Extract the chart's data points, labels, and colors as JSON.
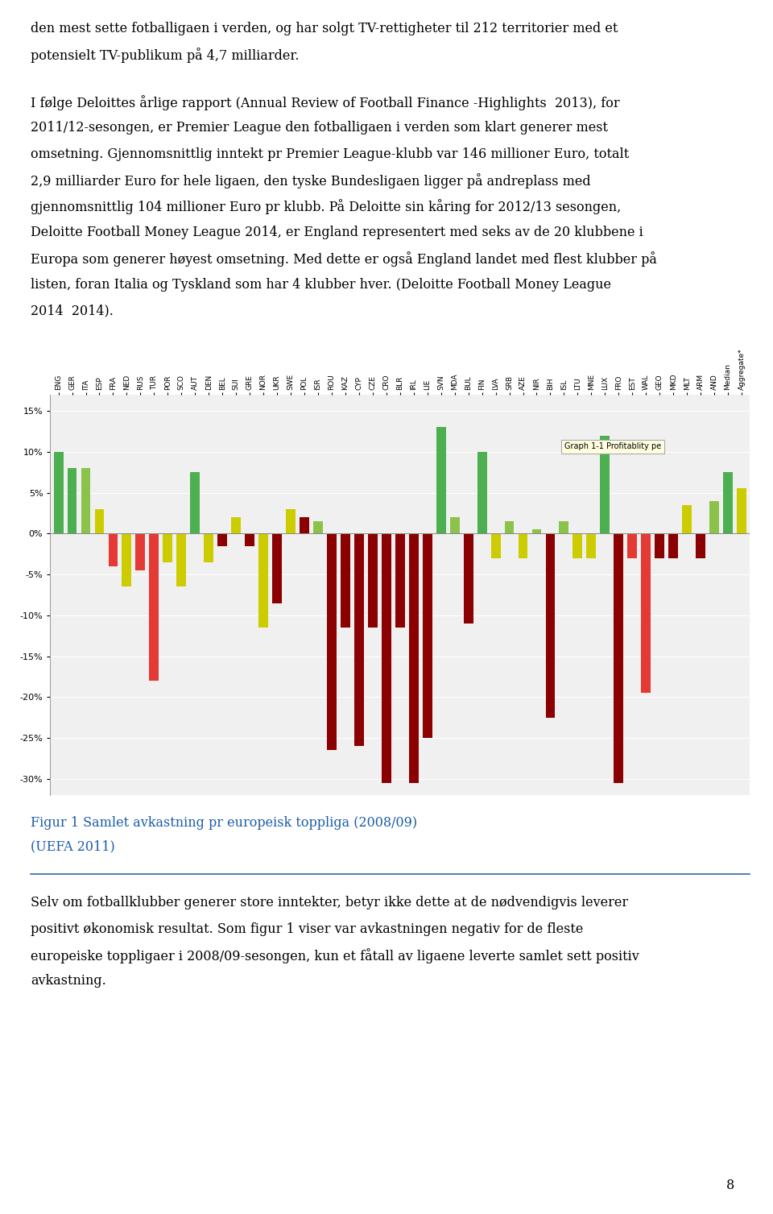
{
  "categories": [
    "ENG",
    "GER",
    "ITA",
    "ESP",
    "FRA",
    "NED",
    "RUS",
    "TUR",
    "POR",
    "SCO",
    "AUT",
    "DEN",
    "BEL",
    "SUI",
    "GRE",
    "NOR",
    "UKR",
    "SWE",
    "POL",
    "ISR",
    "ROU",
    "KAZ",
    "CYP",
    "CZE",
    "CRO",
    "BLR",
    "IRL",
    "LIE",
    "SVN",
    "MDA",
    "BUL",
    "FIN",
    "LVA",
    "SRB",
    "AZE",
    "NIR",
    "BIH",
    "ISL",
    "LTU",
    "MNE",
    "LUX",
    "FRO",
    "EST",
    "WAL",
    "GEO",
    "MKD",
    "MLT",
    "ARM",
    "AND",
    "Median",
    "Aggregate*"
  ],
  "values": [
    10.0,
    8.0,
    8.0,
    3.0,
    -4.0,
    -6.5,
    -4.5,
    -18.0,
    -3.5,
    -6.5,
    7.5,
    -3.5,
    -1.5,
    2.0,
    -1.5,
    -11.5,
    -8.5,
    3.0,
    2.0,
    1.5,
    -26.5,
    -11.5,
    -26.0,
    -11.5,
    -30.5,
    -11.5,
    -30.5,
    -25.0,
    13.0,
    2.0,
    -11.0,
    10.0,
    -3.0,
    1.5,
    -3.0,
    0.5,
    -22.5,
    1.5,
    -3.0,
    -3.0,
    12.0,
    -30.5,
    -3.0,
    -19.5,
    -3.0,
    -3.0,
    3.5,
    -3.0,
    4.0,
    7.5,
    5.5
  ],
  "colors": [
    "#4caf50",
    "#4caf50",
    "#8bc34a",
    "#cccc00",
    "#e53935",
    "#cccc00",
    "#e53935",
    "#e53935",
    "#cccc00",
    "#cccc00",
    "#4caf50",
    "#cccc00",
    "#8b0000",
    "#cccc00",
    "#8b0000",
    "#cccc00",
    "#8b0000",
    "#cccc00",
    "#8b0000",
    "#8bc34a",
    "#8b0000",
    "#8b0000",
    "#8b0000",
    "#8b0000",
    "#8b0000",
    "#8b0000",
    "#8b0000",
    "#8b0000",
    "#4caf50",
    "#8bc34a",
    "#8b0000",
    "#4caf50",
    "#cccc00",
    "#8bc34a",
    "#cccc00",
    "#8bc34a",
    "#8b0000",
    "#8bc34a",
    "#cccc00",
    "#cccc00",
    "#4caf50",
    "#8b0000",
    "#e53935",
    "#e53935",
    "#8b0000",
    "#8b0000",
    "#cccc00",
    "#8b0000",
    "#8bc34a",
    "#4caf50",
    "#cccc00"
  ],
  "ylim": [
    -32,
    17
  ],
  "yticks": [
    15,
    10,
    5,
    0,
    -5,
    -10,
    -15,
    -20,
    -25,
    -30
  ],
  "note_text": "Graph 1-1 Profitablity pe",
  "caption_line1": "Figur 1 Samlet avkastning pr europeisk toppliga (2008/09)",
  "caption_line2": "(UEFA 2011)",
  "chart_bg": "#f0f0f0",
  "page_texts_top": [
    "den mest sette fotballigaen i verden, og har solgt TV-rettigheter til 212 territorier med et",
    "potensielt TV-publikum på 4,7 milliarder.",
    "",
    "I følge Deloittes årlige rapport (Annual Review of Football Finance -Highlights  2013), for",
    "2011/12-sesongen, er Premier League den fotballigaen i verden som klart generer mest",
    "omsetning. Gjennomsnittlig inntekt pr Premier League-klubb var 146 millioner Euro, totalt",
    "2,9 milliarder Euro for hele ligaen, den tyske Bundesligaen ligger på andreplass med",
    "gjennomsnittlig 104 millioner Euro pr klubb. På Deloitte sin kåring for 2012/13 sesongen,",
    "Deloitte Football Money League 2014, er England representert med seks av de 20 klubbene i",
    "Europa som generer høyest omsetning. Med dette er også England landet med flest klubber på",
    "listen, foran Italia og Tyskland som har 4 klubber hver. (Deloitte Football Money League",
    "2014  2014)."
  ],
  "page_texts_bottom": [
    "Selv om fotballklubber generer store inntekter, betyr ikke dette at de nødvendigvis leverer",
    "positivt økonomisk resultat. Som figur 1 viser var avkastningen negativ for de fleste",
    "europeiske toppligaer i 2008/09-sesongen, kun et fåtall av ligaene leverte samlet sett positiv",
    "avkastning."
  ]
}
